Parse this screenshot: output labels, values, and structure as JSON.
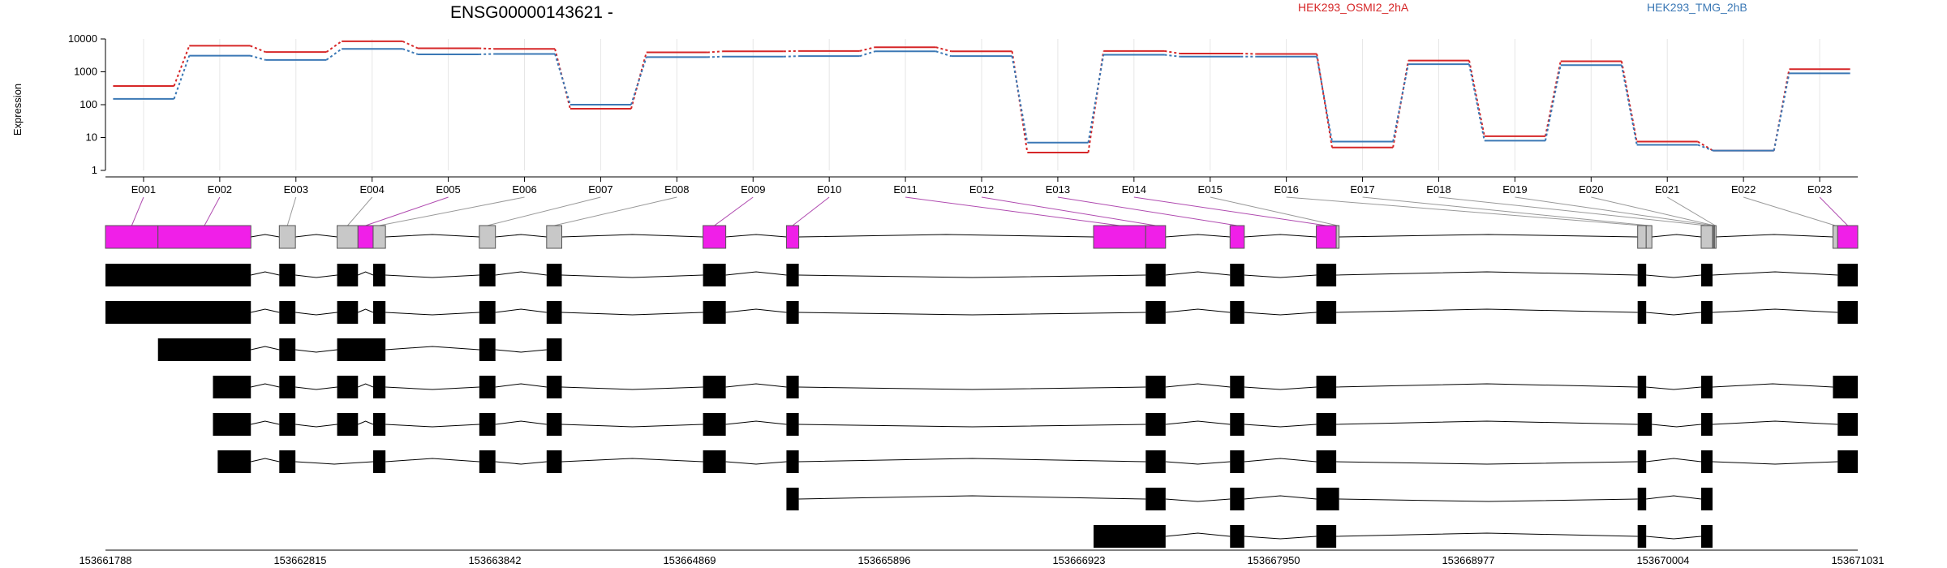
{
  "chart_data": {
    "type": "line",
    "title": "ENSG00000143621 -",
    "ylabel": "Expression",
    "y_scale": "log",
    "ylim": [
      1,
      10000
    ],
    "y_ticks": [
      "10000",
      "1000",
      "100",
      "10",
      "1"
    ],
    "grid": true,
    "legend_position": "top-right",
    "categories": [
      "E001",
      "E002",
      "E003",
      "E004",
      "E005",
      "E006",
      "E007",
      "E008",
      "E009",
      "E010",
      "E011",
      "E012",
      "E013",
      "E014",
      "E015",
      "E016",
      "E017",
      "E018",
      "E019",
      "E020",
      "E021",
      "E022",
      "E023"
    ],
    "series": [
      {
        "name": "HEK293_OSMI2_2hA",
        "color": "#d62728",
        "values": [
          370,
          6200,
          4000,
          8500,
          5200,
          5000,
          75,
          3900,
          4200,
          4300,
          5600,
          4200,
          3.5,
          4300,
          3600,
          3500,
          5,
          2200,
          11,
          2100,
          7.5,
          4,
          1200
        ]
      },
      {
        "name": "HEK293_TMG_2hB",
        "color": "#3b78b5",
        "values": [
          150,
          3100,
          2300,
          5000,
          3400,
          3500,
          100,
          2800,
          2900,
          3000,
          4200,
          3000,
          7,
          3300,
          2900,
          2900,
          7.5,
          1700,
          8,
          1600,
          6,
          4,
          900
        ]
      }
    ],
    "gene_model": {
      "coord_range": [
        153661788,
        153671031
      ],
      "coord_ticks": [
        153661788,
        153662815,
        153663842,
        153664869,
        153665896,
        153666923,
        153667950,
        153668977,
        153670004,
        153671031
      ],
      "exons": [
        {
          "id": "E001",
          "start": 153661788,
          "end": 153662065,
          "highlight": true
        },
        {
          "id": "E002",
          "start": 153662065,
          "end": 153662555,
          "highlight": true
        },
        {
          "id": "E003",
          "start": 153662705,
          "end": 153662790,
          "highlight": false
        },
        {
          "id": "E004",
          "start": 153663010,
          "end": 153663120,
          "highlight": false
        },
        {
          "id": "E005",
          "start": 153663120,
          "end": 153663200,
          "highlight": true
        },
        {
          "id": "E006",
          "start": 153663200,
          "end": 153663265,
          "highlight": false
        },
        {
          "id": "E007",
          "start": 153663760,
          "end": 153663845,
          "highlight": false
        },
        {
          "id": "E008",
          "start": 153664115,
          "end": 153664195,
          "highlight": false
        },
        {
          "id": "E009",
          "start": 153664940,
          "end": 153665060,
          "highlight": true
        },
        {
          "id": "E010",
          "start": 153665380,
          "end": 153665445,
          "highlight": true
        },
        {
          "id": "E011",
          "start": 153667000,
          "end": 153667275,
          "highlight": true
        },
        {
          "id": "E012",
          "start": 153667275,
          "end": 153667380,
          "highlight": true
        },
        {
          "id": "E013",
          "start": 153667720,
          "end": 153667795,
          "highlight": true
        },
        {
          "id": "E014",
          "start": 153668175,
          "end": 153668280,
          "highlight": true
        },
        {
          "id": "E015",
          "start": 153668280,
          "end": 153668295,
          "highlight": false
        },
        {
          "id": "E016",
          "start": 153669870,
          "end": 153669915,
          "highlight": false
        },
        {
          "id": "E017",
          "start": 153669915,
          "end": 153669945,
          "highlight": false
        },
        {
          "id": "E018",
          "start": 153670205,
          "end": 153670265,
          "highlight": false
        },
        {
          "id": "E019",
          "start": 153670265,
          "end": 153670270,
          "highlight": false
        },
        {
          "id": "E020",
          "start": 153670270,
          "end": 153670275,
          "highlight": false
        },
        {
          "id": "E021",
          "start": 153670275,
          "end": 153670280,
          "highlight": false
        },
        {
          "id": "E022",
          "start": 153670900,
          "end": 153670925,
          "highlight": false
        },
        {
          "id": "E023",
          "start": 153670925,
          "end": 153671031,
          "highlight": true
        }
      ],
      "transcripts": [
        [
          [
            153661788,
            153662555
          ],
          [
            153662705,
            153662790
          ],
          [
            153663010,
            153663120
          ],
          [
            153663200,
            153663265
          ],
          [
            153663760,
            153663845
          ],
          [
            153664115,
            153664195
          ],
          [
            153664940,
            153665060
          ],
          [
            153665380,
            153665445
          ],
          [
            153667275,
            153667380
          ],
          [
            153667720,
            153667795
          ],
          [
            153668175,
            153668280
          ],
          [
            153669870,
            153669915
          ],
          [
            153670205,
            153670265
          ],
          [
            153670925,
            153671031
          ]
        ],
        [
          [
            153661788,
            153662555
          ],
          [
            153662705,
            153662790
          ],
          [
            153663010,
            153663120
          ],
          [
            153663200,
            153663265
          ],
          [
            153663760,
            153663845
          ],
          [
            153664115,
            153664195
          ],
          [
            153664940,
            153665060
          ],
          [
            153665380,
            153665445
          ],
          [
            153667275,
            153667380
          ],
          [
            153667720,
            153667795
          ],
          [
            153668175,
            153668280
          ],
          [
            153669870,
            153669915
          ],
          [
            153670205,
            153670265
          ],
          [
            153670925,
            153671031
          ]
        ],
        [
          [
            153662065,
            153662555
          ],
          [
            153662705,
            153662790
          ],
          [
            153663010,
            153663265
          ],
          [
            153663760,
            153663845
          ],
          [
            153664115,
            153664195
          ]
        ],
        [
          [
            153662355,
            153662555
          ],
          [
            153662705,
            153662790
          ],
          [
            153663010,
            153663120
          ],
          [
            153663200,
            153663265
          ],
          [
            153663760,
            153663845
          ],
          [
            153664115,
            153664195
          ],
          [
            153664940,
            153665060
          ],
          [
            153665380,
            153665445
          ],
          [
            153667275,
            153667380
          ],
          [
            153667720,
            153667795
          ],
          [
            153668175,
            153668280
          ],
          [
            153669870,
            153669915
          ],
          [
            153670205,
            153670265
          ],
          [
            153670900,
            153671031
          ]
        ],
        [
          [
            153662355,
            153662555
          ],
          [
            153662705,
            153662790
          ],
          [
            153663010,
            153663120
          ],
          [
            153663200,
            153663265
          ],
          [
            153663760,
            153663845
          ],
          [
            153664115,
            153664195
          ],
          [
            153664940,
            153665060
          ],
          [
            153665380,
            153665445
          ],
          [
            153667275,
            153667380
          ],
          [
            153667720,
            153667795
          ],
          [
            153668175,
            153668280
          ],
          [
            153669870,
            153669945
          ],
          [
            153670205,
            153670265
          ],
          [
            153670925,
            153671031
          ]
        ],
        [
          [
            153662380,
            153662555
          ],
          [
            153662705,
            153662790
          ],
          [
            153663200,
            153663265
          ],
          [
            153663760,
            153663845
          ],
          [
            153664115,
            153664195
          ],
          [
            153664940,
            153665060
          ],
          [
            153665380,
            153665445
          ],
          [
            153667275,
            153667380
          ],
          [
            153667720,
            153667795
          ],
          [
            153668175,
            153668280
          ],
          [
            153669870,
            153669915
          ],
          [
            153670205,
            153670265
          ],
          [
            153670925,
            153671031
          ]
        ],
        [
          [
            153665380,
            153665445
          ],
          [
            153667275,
            153667380
          ],
          [
            153667720,
            153667795
          ],
          [
            153668175,
            153668295
          ],
          [
            153669870,
            153669915
          ],
          [
            153670205,
            153670265
          ]
        ],
        [
          [
            153667000,
            153667380
          ],
          [
            153667720,
            153667795
          ],
          [
            153668175,
            153668280
          ],
          [
            153669870,
            153669915
          ],
          [
            153670205,
            153670265
          ]
        ]
      ]
    }
  }
}
